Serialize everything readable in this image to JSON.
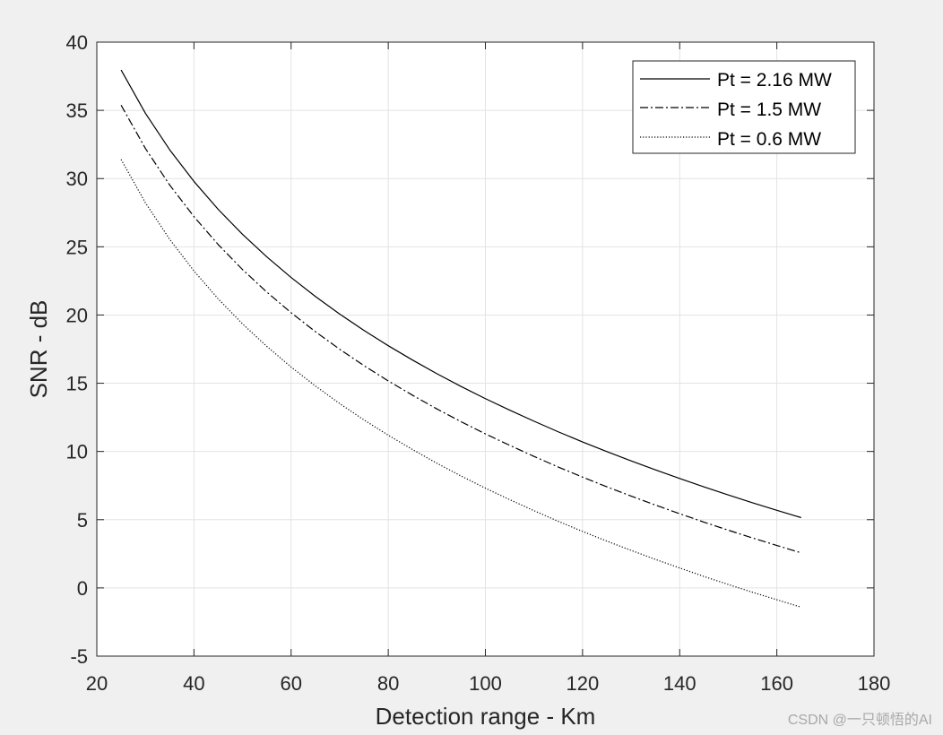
{
  "chart_data": {
    "type": "line",
    "xlabel": "Detection range - Km",
    "ylabel": "SNR - dB",
    "xlim": [
      20,
      180
    ],
    "ylim": [
      -5,
      40
    ],
    "xticks": [
      20,
      40,
      60,
      80,
      100,
      120,
      140,
      160,
      180
    ],
    "yticks": [
      -5,
      0,
      5,
      10,
      15,
      20,
      25,
      30,
      35,
      40
    ],
    "grid": true,
    "legend_position": "top-right",
    "x": [
      25,
      30,
      35,
      40,
      45,
      50,
      55,
      60,
      65,
      70,
      75,
      80,
      85,
      90,
      95,
      100,
      105,
      110,
      115,
      120,
      125,
      130,
      135,
      140,
      145,
      150,
      155,
      160,
      165
    ],
    "series": [
      {
        "name": "Pt = 2.16 MW",
        "style": "solid",
        "values": [
          37.96,
          34.79,
          32.11,
          29.79,
          27.74,
          25.91,
          24.26,
          22.75,
          21.36,
          20.07,
          18.87,
          17.75,
          16.7,
          15.7,
          14.76,
          13.87,
          13.03,
          12.22,
          11.44,
          10.7,
          9.99,
          9.31,
          8.65,
          8.02,
          7.4,
          6.81,
          6.24,
          5.69,
          5.15
        ]
      },
      {
        "name": "Pt = 1.5 MW",
        "style": "dashdot",
        "values": [
          35.38,
          32.21,
          29.53,
          27.21,
          25.16,
          23.33,
          21.68,
          20.17,
          18.78,
          17.49,
          16.29,
          15.17,
          14.12,
          13.12,
          12.18,
          11.29,
          10.45,
          9.64,
          8.86,
          8.12,
          7.41,
          6.73,
          6.07,
          5.44,
          4.82,
          4.23,
          3.66,
          3.11,
          2.57
        ]
      },
      {
        "name": "Pt = 0.6 MW",
        "style": "dotted",
        "values": [
          31.4,
          28.23,
          25.55,
          23.23,
          21.18,
          19.35,
          17.7,
          16.19,
          14.8,
          13.51,
          12.31,
          11.19,
          10.14,
          9.14,
          8.2,
          7.31,
          6.47,
          5.66,
          4.88,
          4.14,
          3.43,
          2.75,
          2.09,
          1.46,
          0.84,
          0.25,
          -0.32,
          -0.87,
          -1.41
        ]
      }
    ]
  },
  "watermark": "CSDN @一只顿悟的AI"
}
